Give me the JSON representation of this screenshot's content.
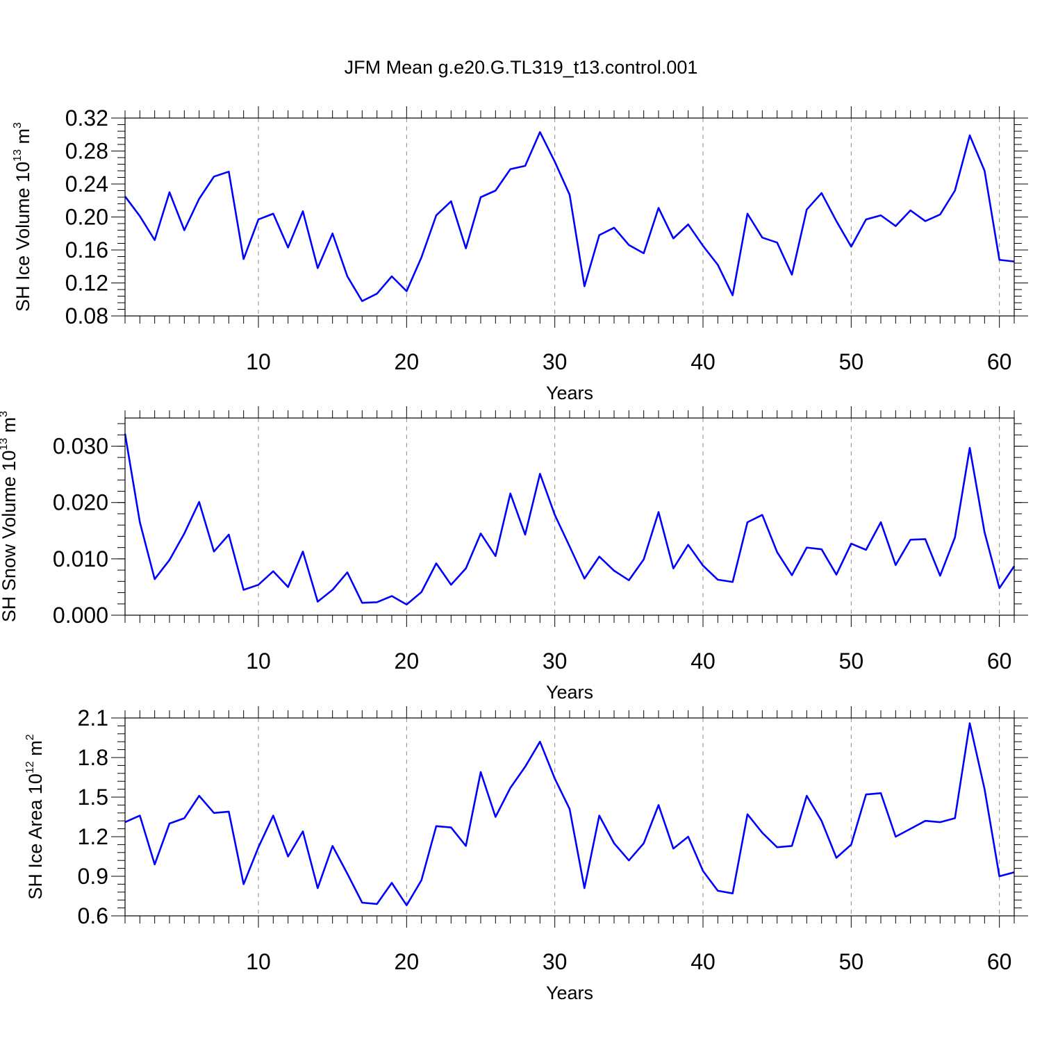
{
  "title": "JFM Mean g.e20.G.TL319_t13.control.001",
  "line_color": "#0000ff",
  "chart_data": [
    {
      "type": "line",
      "xlabel": "Years",
      "ylabel": {
        "base": "SH Ice Volume 10",
        "exp": "13",
        "unit": " m",
        "unit_exp": "3"
      },
      "xlim": [
        1,
        61
      ],
      "ylim": [
        0.08,
        0.32
      ],
      "xticks": [
        10,
        20,
        30,
        40,
        50,
        60
      ],
      "yticks": [
        0.08,
        0.12,
        0.16,
        0.2,
        0.24,
        0.28,
        0.32
      ],
      "ytick_labels": [
        "0.08",
        "0.12",
        "0.16",
        "0.20",
        "0.24",
        "0.28",
        "0.32"
      ],
      "grid": "vertical-dashed",
      "series": [
        {
          "values": [
            0.225,
            0.201,
            0.172,
            0.23,
            0.184,
            0.222,
            0.249,
            0.255,
            0.149,
            0.197,
            0.204,
            0.163,
            0.207,
            0.138,
            0.18,
            0.128,
            0.098,
            0.107,
            0.128,
            0.11,
            0.151,
            0.202,
            0.219,
            0.162,
            0.224,
            0.232,
            0.258,
            0.262,
            0.303,
            0.267,
            0.227,
            0.116,
            0.178,
            0.187,
            0.166,
            0.156,
            0.211,
            0.174,
            0.191,
            0.165,
            0.142,
            0.105,
            0.204,
            0.175,
            0.169,
            0.13,
            0.209,
            0.229,
            0.195,
            0.164,
            0.197,
            0.202,
            0.189,
            0.208,
            0.195,
            0.203,
            0.232,
            0.299,
            0.256,
            0.148,
            0.146
          ]
        }
      ]
    },
    {
      "type": "line",
      "xlabel": "Years",
      "ylabel": {
        "base": "SH Snow Volume 10",
        "exp": "13",
        "unit": " m",
        "unit_exp": "3"
      },
      "xlim": [
        1,
        61
      ],
      "ylim": [
        0.0,
        0.035
      ],
      "xticks": [
        10,
        20,
        30,
        40,
        50,
        60
      ],
      "yticks": [
        0.0,
        0.01,
        0.02,
        0.03
      ],
      "ytick_labels": [
        "0.000",
        "0.010",
        "0.020",
        "0.030"
      ],
      "grid": "vertical-dashed",
      "series": [
        {
          "values": [
            0.0322,
            0.0165,
            0.0064,
            0.0098,
            0.0145,
            0.0201,
            0.0113,
            0.0143,
            0.0045,
            0.0054,
            0.0078,
            0.005,
            0.0113,
            0.0024,
            0.0045,
            0.0076,
            0.0022,
            0.0023,
            0.0034,
            0.0019,
            0.0041,
            0.0092,
            0.0054,
            0.0083,
            0.0145,
            0.0105,
            0.0216,
            0.0143,
            0.0251,
            0.0178,
            0.0122,
            0.0065,
            0.0104,
            0.0079,
            0.0062,
            0.0099,
            0.0183,
            0.0083,
            0.0125,
            0.0088,
            0.0063,
            0.0059,
            0.0165,
            0.0178,
            0.0112,
            0.0071,
            0.012,
            0.0117,
            0.0072,
            0.0127,
            0.0116,
            0.0165,
            0.0089,
            0.0134,
            0.0135,
            0.007,
            0.0138,
            0.0297,
            0.0147,
            0.0048,
            0.0087
          ]
        }
      ]
    },
    {
      "type": "line",
      "xlabel": "Years",
      "ylabel": {
        "base": "SH Ice Area 10",
        "exp": "12",
        "unit": " m",
        "unit_exp": "2"
      },
      "xlim": [
        1,
        61
      ],
      "ylim": [
        0.6,
        2.1
      ],
      "xticks": [
        10,
        20,
        30,
        40,
        50,
        60
      ],
      "yticks": [
        0.6,
        0.9,
        1.2,
        1.5,
        1.8,
        2.1
      ],
      "ytick_labels": [
        "0.6",
        "0.9",
        "1.2",
        "1.5",
        "1.8",
        "2.1"
      ],
      "grid": "vertical-dashed",
      "series": [
        {
          "values": [
            1.31,
            1.36,
            0.99,
            1.3,
            1.34,
            1.51,
            1.38,
            1.39,
            0.84,
            1.12,
            1.36,
            1.05,
            1.24,
            0.81,
            1.13,
            0.92,
            0.7,
            0.69,
            0.85,
            0.68,
            0.87,
            1.28,
            1.27,
            1.13,
            1.69,
            1.35,
            1.57,
            1.73,
            1.92,
            1.64,
            1.41,
            0.81,
            1.36,
            1.15,
            1.02,
            1.15,
            1.44,
            1.11,
            1.2,
            0.94,
            0.79,
            0.77,
            1.37,
            1.23,
            1.12,
            1.13,
            1.51,
            1.32,
            1.04,
            1.14,
            1.52,
            1.53,
            1.2,
            1.26,
            1.32,
            1.31,
            1.34,
            2.06,
            1.56,
            0.9,
            0.93
          ]
        }
      ]
    }
  ]
}
